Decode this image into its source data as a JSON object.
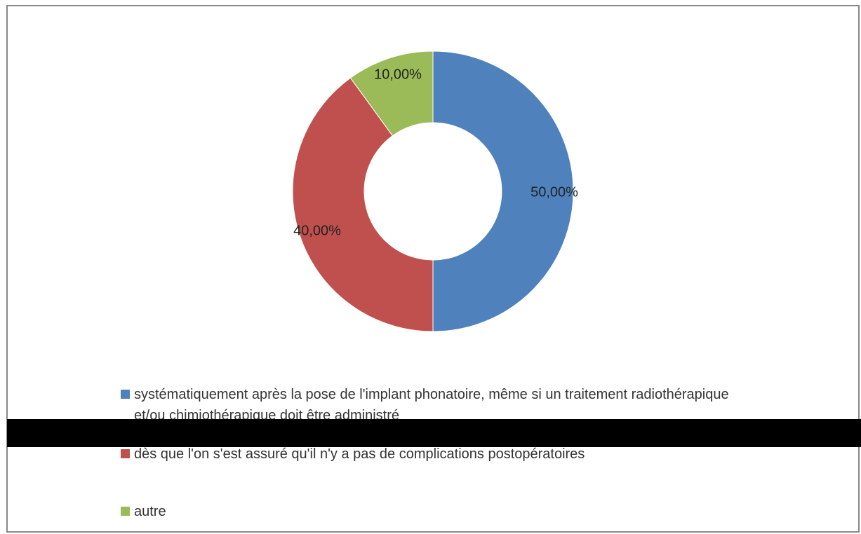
{
  "chart_data": {
    "type": "donut",
    "categories": [
      "systématiquement après la pose de l'implant phonatoire, même si un traitement radiothérapique et/ou chimiothérapique doit être administré",
      "dès que l'on s'est assuré qu'il n'y a pas de complications postopératoires",
      "autre"
    ],
    "values": [
      50,
      40,
      10
    ],
    "value_labels": [
      "50,00%",
      "40,00%",
      "10,00%"
    ],
    "colors": [
      "#4f81bd",
      "#c0504d",
      "#9bbb59"
    ],
    "legend": "bottom"
  }
}
